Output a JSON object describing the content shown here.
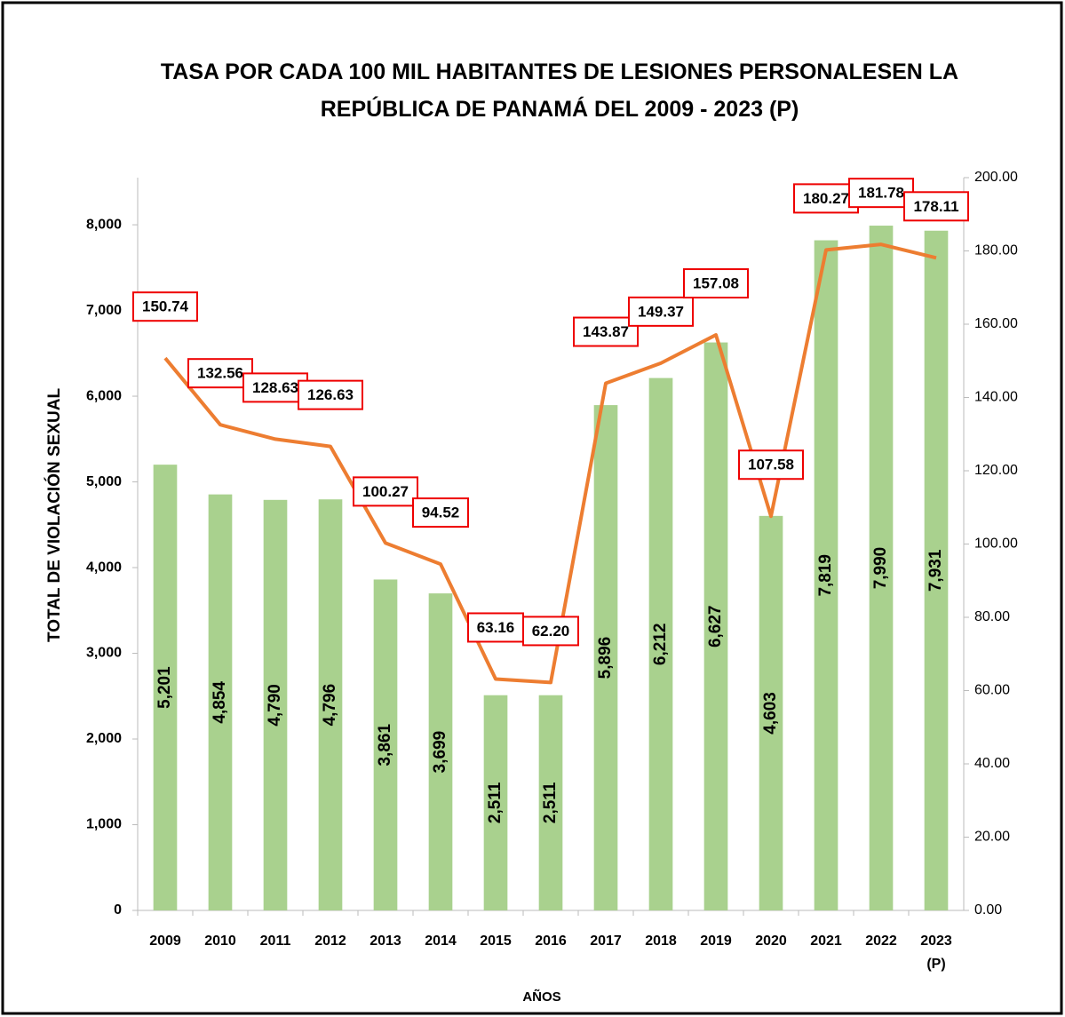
{
  "chart_data": {
    "type": "bar",
    "title": "TASA POR CADA 100 MIL HABITANTES DE LESIONES PERSONALESEN LA REPÚBLICA DE PANAMÁ DEL 2009 - 2023 (P)",
    "x_label": "AÑOS",
    "y_label": "TOTAL DE VIOLACIÓN SEXUAL",
    "categories": [
      "2009",
      "2010",
      "2011",
      "2012",
      "2013",
      "2014",
      "2015",
      "2016",
      "2017",
      "2018",
      "2019",
      "2020",
      "2021",
      "2022",
      "2023 (P)"
    ],
    "series": [
      {
        "type": "bar",
        "color": "#a9d18e",
        "values": [
          5201,
          4854,
          4790,
          4796,
          3861,
          3699,
          2511,
          2511,
          5896,
          6212,
          6627,
          4603,
          7819,
          7990,
          7931
        ],
        "value_labels": [
          "5,201",
          "4,854",
          "4,790",
          "4,796",
          "3,861",
          "3,699",
          "2,511",
          "2,511",
          "5,896",
          "6,212",
          "6,627",
          "4,603",
          "7,819",
          "7,990",
          "7,931"
        ]
      },
      {
        "type": "line",
        "axis": "y2",
        "color": "#ed7d31",
        "values": [
          150.74,
          132.56,
          128.63,
          126.63,
          100.27,
          94.52,
          63.16,
          62.2,
          143.87,
          149.37,
          157.08,
          107.58,
          180.27,
          181.78,
          178.11
        ],
        "value_labels": [
          "150.74",
          "132.56",
          "128.63",
          "126.63",
          "100.27",
          "94.52",
          "63.16",
          "62.20",
          "143.87",
          "149.37",
          "157.08",
          "107.58",
          "180.27",
          "181.78",
          "178.11"
        ]
      }
    ],
    "ylim": [
      0,
      8550
    ],
    "yticks": [
      0,
      {
        "value": 1000,
        "label": "1,000"
      },
      {
        "value": 2000,
        "label": "2,000"
      },
      {
        "value": 3000,
        "label": "3,000"
      },
      {
        "value": 4000,
        "label": "4,000"
      },
      {
        "value": 5000,
        "label": "5,000"
      },
      {
        "value": 6000,
        "label": "6,000"
      },
      {
        "value": 7000,
        "label": "7,000"
      },
      {
        "value": 8000,
        "label": "8,000"
      }
    ],
    "y2lim": [
      0,
      200
    ],
    "y2ticks": [
      {
        "value": 0,
        "label": "0.00"
      },
      {
        "value": 20,
        "label": "20.00"
      },
      {
        "value": 40,
        "label": "40.00"
      },
      {
        "value": 60,
        "label": "60.00"
      },
      {
        "value": 80,
        "label": "80.00"
      },
      {
        "value": 100,
        "label": "100.00"
      },
      {
        "value": 120,
        "label": "120.00"
      },
      {
        "value": 140,
        "label": "140.00"
      },
      {
        "value": 160,
        "label": "160.00"
      },
      {
        "value": 180,
        "label": "180.00"
      },
      {
        "value": 200,
        "label": "200.00"
      }
    ]
  }
}
